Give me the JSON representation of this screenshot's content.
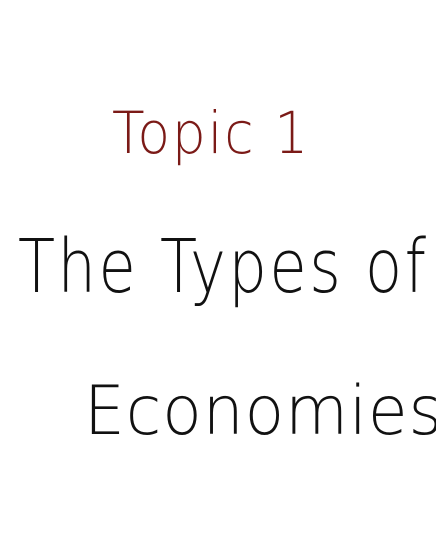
{
  "topic": {
    "label": "Topic 1",
    "color": "#7b1a17"
  },
  "title": {
    "line1": "The Types of",
    "line2": "Economies",
    "color": "#111111"
  }
}
